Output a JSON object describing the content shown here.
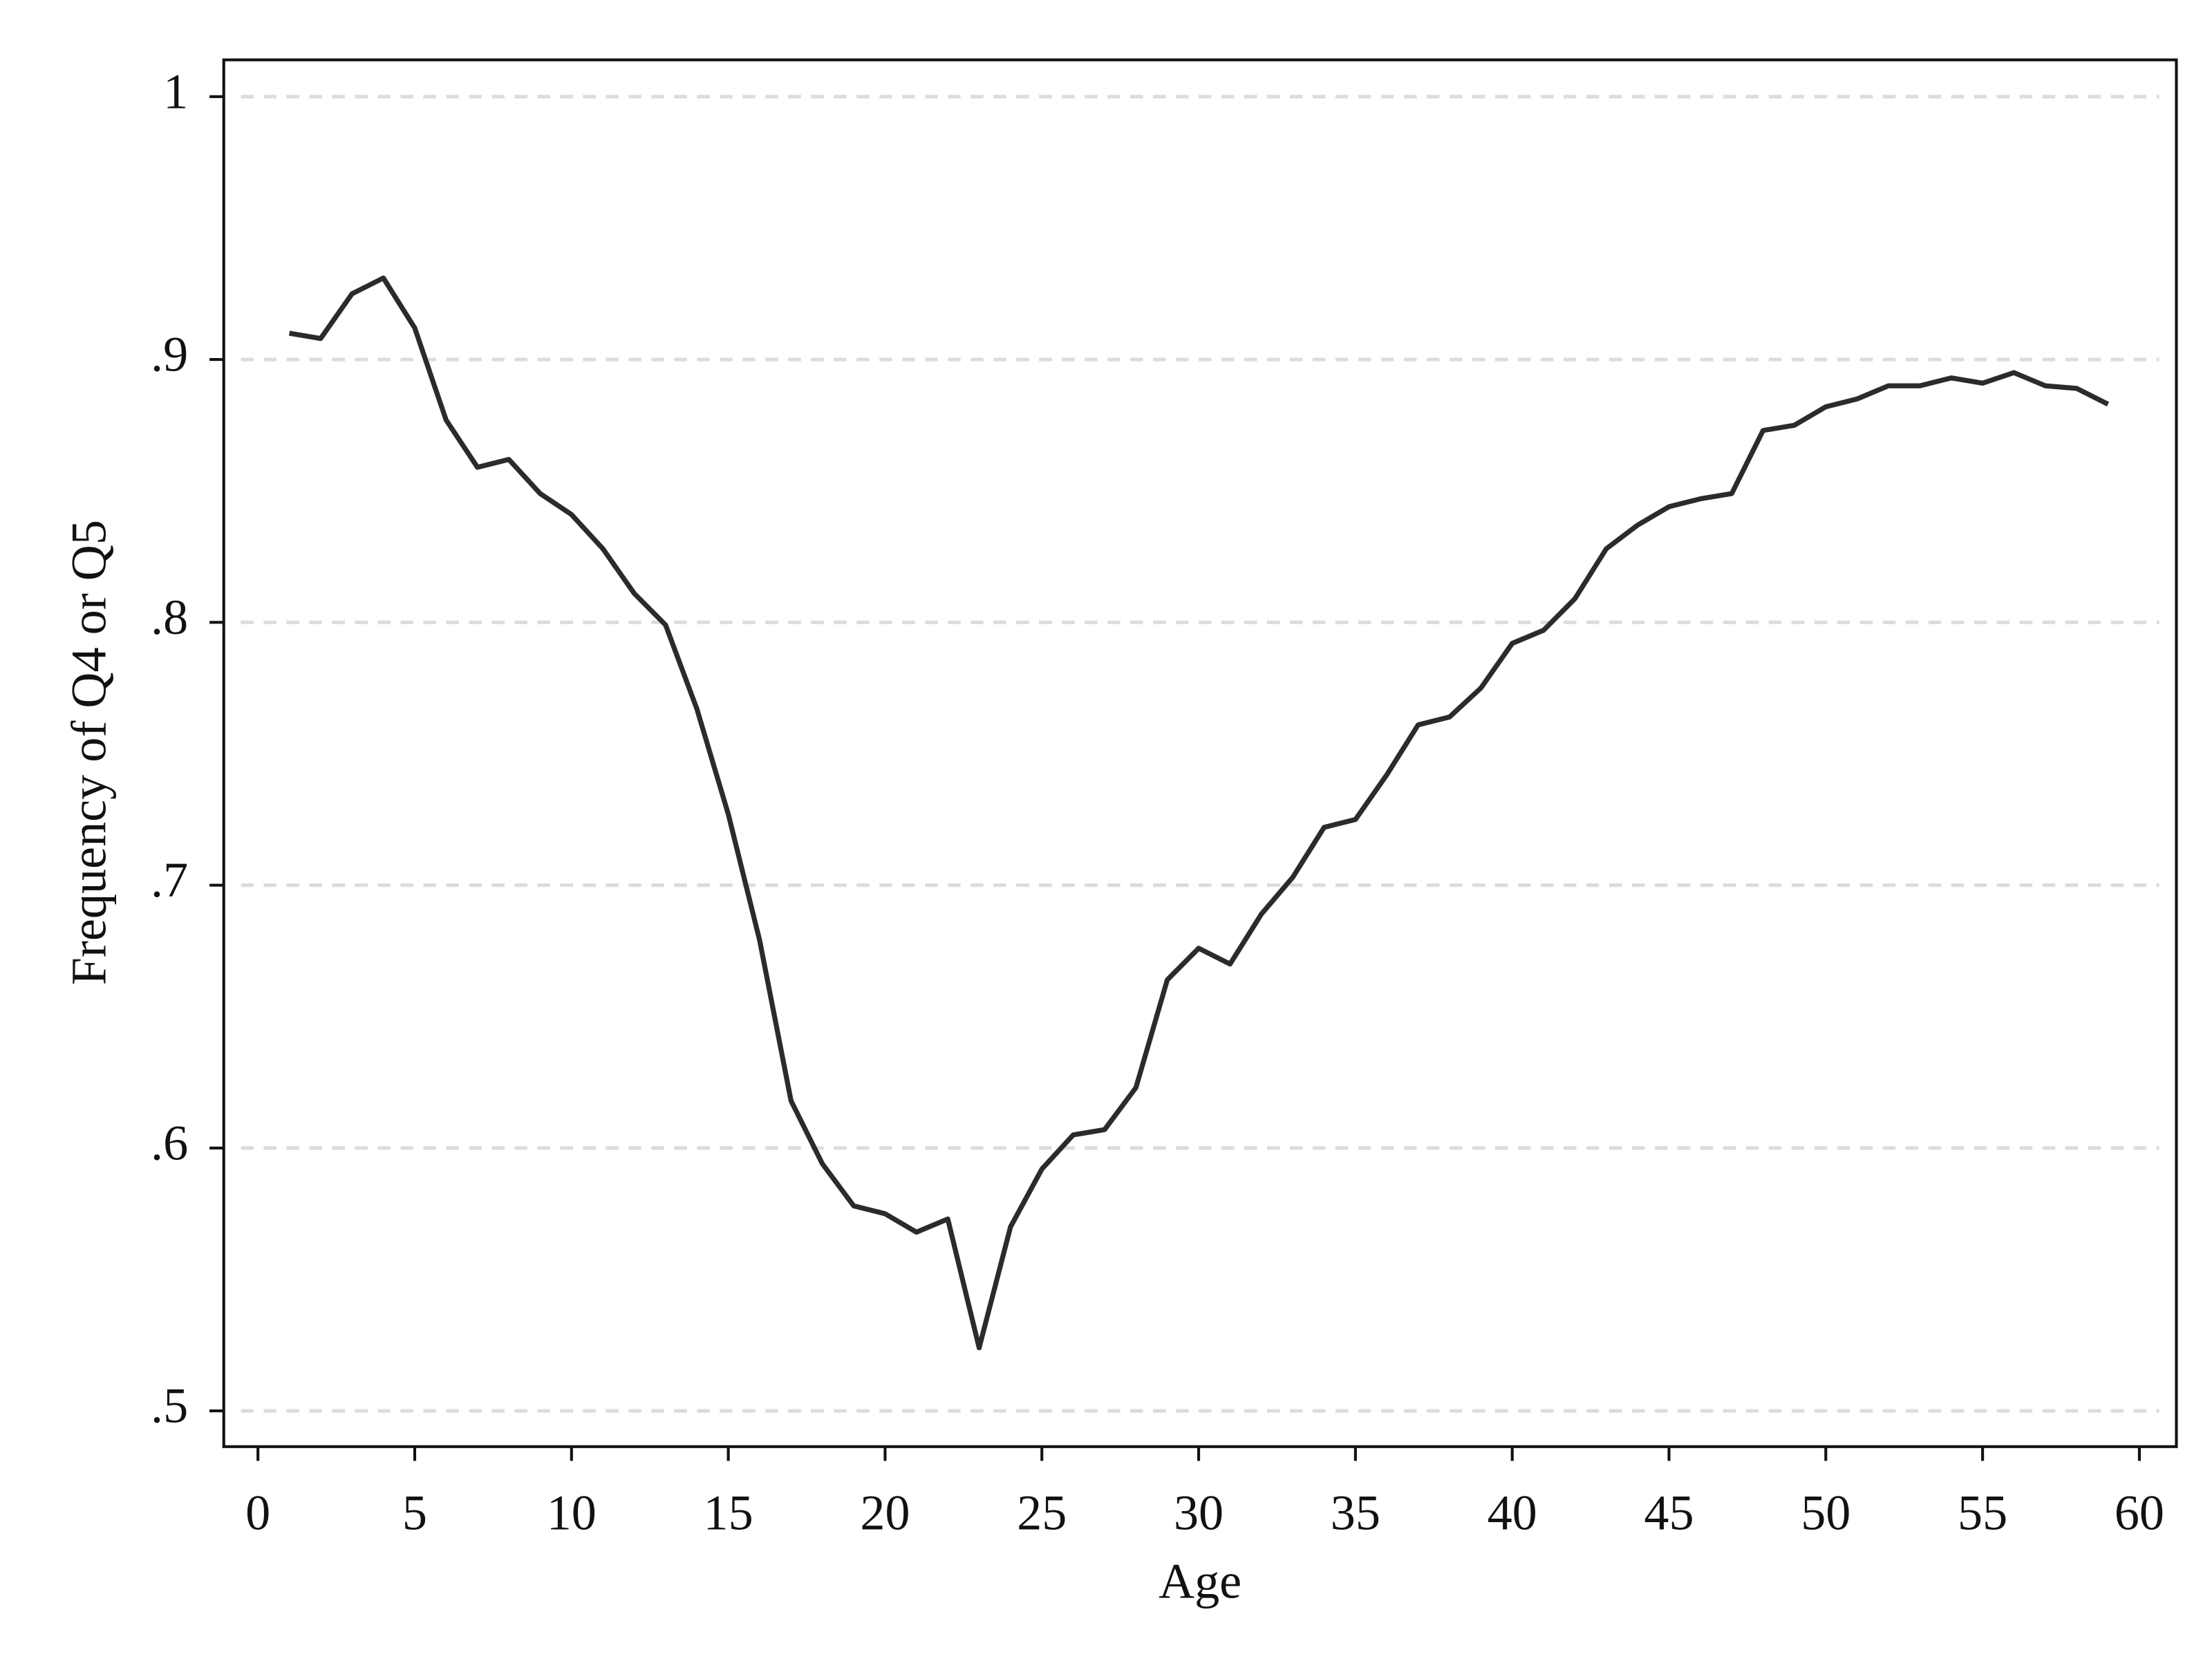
{
  "chart_data": {
    "type": "line",
    "xlabel": "Age",
    "ylabel": "Frequency of Q4 or Q5",
    "x": [
      1,
      2,
      3,
      4,
      5,
      6,
      7,
      8,
      9,
      10,
      11,
      12,
      13,
      14,
      15,
      16,
      17,
      18,
      19,
      20,
      21,
      22,
      23,
      24,
      25,
      26,
      27,
      28,
      29,
      30,
      31,
      32,
      33,
      34,
      35,
      36,
      37,
      38,
      39,
      40,
      41,
      42,
      43,
      44,
      45,
      46,
      47,
      48,
      49,
      50,
      51,
      52,
      53,
      54,
      55,
      56,
      57,
      58,
      59
    ],
    "series": [
      {
        "color": "#2b2b2b",
        "values": [
          0.91,
          0.908,
          0.925,
          0.931,
          0.912,
          0.877,
          0.859,
          0.862,
          0.849,
          0.841,
          0.828,
          0.811,
          0.799,
          0.767,
          0.727,
          0.679,
          0.618,
          0.594,
          0.578,
          0.575,
          0.568,
          0.573,
          0.524,
          0.57,
          0.592,
          0.605,
          0.607,
          0.623,
          0.664,
          0.676,
          0.67,
          0.689,
          0.703,
          0.722,
          0.725,
          0.742,
          0.761,
          0.764,
          0.775,
          0.792,
          0.797,
          0.809,
          0.828,
          0.837,
          0.844,
          0.847,
          0.849,
          0.873,
          0.875,
          0.882,
          0.885,
          0.89,
          0.89,
          0.893,
          0.891,
          0.895,
          0.89,
          0.889,
          0.883
        ]
      }
    ],
    "xlim": [
      -1.09,
      61.18
    ],
    "xticks": [
      0,
      5,
      10,
      15,
      20,
      25,
      30,
      35,
      40,
      45,
      50,
      55,
      60
    ],
    "ylim": [
      0.4864,
      1.014
    ],
    "yticks": [
      {
        "value": 0.5,
        "label": ".5"
      },
      {
        "value": 0.6,
        "label": ".6"
      },
      {
        "value": 0.7,
        "label": ".7"
      },
      {
        "value": 0.8,
        "label": ".8"
      },
      {
        "value": 0.9,
        "label": ".9"
      },
      1
    ],
    "grid": true
  }
}
